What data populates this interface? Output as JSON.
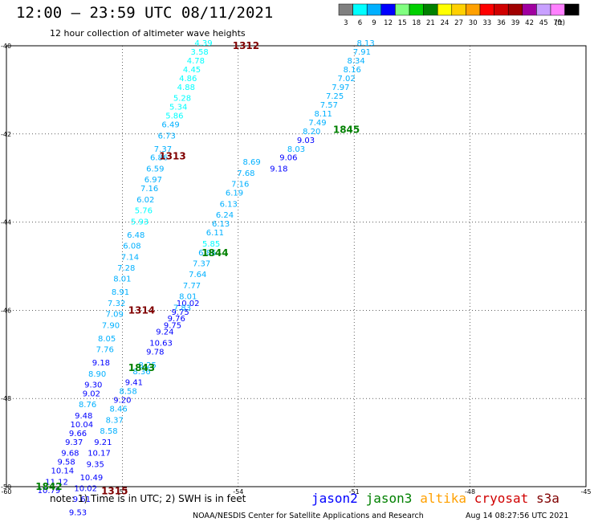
{
  "header": {
    "title": "12:00 – 23:59 UTC 08/11/2021",
    "subtitle": "12 hour collection of altimeter wave heights"
  },
  "legend": {
    "unit": "(ft)",
    "bins": [
      {
        "label": "3",
        "color": "#808080"
      },
      {
        "label": "6",
        "color": "#00ffff"
      },
      {
        "label": "9",
        "color": "#00b0ff"
      },
      {
        "label": "12",
        "color": "#0000ff"
      },
      {
        "label": "15",
        "color": "#80ff80"
      },
      {
        "label": "18",
        "color": "#00d000"
      },
      {
        "label": "21",
        "color": "#008000"
      },
      {
        "label": "24",
        "color": "#ffff00"
      },
      {
        "label": "27",
        "color": "#ffd000"
      },
      {
        "label": "30",
        "color": "#ffa000"
      },
      {
        "label": "33",
        "color": "#ff0000"
      },
      {
        "label": "36",
        "color": "#d00000"
      },
      {
        "label": "39",
        "color": "#a00000"
      },
      {
        "label": "42",
        "color": "#a000a0"
      },
      {
        "label": "45",
        "color": "#c8a0ff"
      },
      {
        "label": "70",
        "color": "#ff80ff"
      },
      {
        "label": "",
        "color": "#000000"
      }
    ]
  },
  "map": {
    "lon_range": [
      -60,
      -45
    ],
    "lat_range": [
      -50,
      -40
    ],
    "lon_ticks": [
      "-60",
      "-57",
      "-54",
      "-51",
      "-48",
      "-45"
    ],
    "lat_ticks": [
      "-40",
      "-42",
      "-44",
      "-46",
      "-48",
      "-50"
    ],
    "grid": true
  },
  "chart_data": {
    "type": "scatter",
    "x_unit": "degrees longitude",
    "y_unit": "degrees latitude",
    "value_unit": "ft",
    "passes": [
      {
        "label": "1312",
        "label_color": "#800000",
        "label_pos": [
          -53.8,
          -40.0
        ],
        "points": [
          [
            -54.9,
            -40.0,
            4.39
          ],
          [
            -55.0,
            -40.2,
            3.58
          ],
          [
            -55.1,
            -40.4,
            4.78
          ],
          [
            -55.2,
            -40.6,
            4.45
          ],
          [
            -55.3,
            -40.8,
            4.86
          ],
          [
            -55.35,
            -41.0,
            4.88
          ],
          [
            -55.45,
            -41.25,
            5.28
          ],
          [
            -55.55,
            -41.45,
            5.34
          ],
          [
            -55.65,
            -41.65,
            5.86
          ],
          [
            -55.75,
            -41.85,
            6.49
          ],
          [
            -55.85,
            -42.1,
            6.73
          ],
          [
            -55.95,
            -42.4,
            7.37
          ],
          [
            -56.05,
            -42.6,
            6.86
          ],
          [
            -56.15,
            -42.85,
            6.59
          ],
          [
            -56.2,
            -43.1,
            6.97
          ],
          [
            -56.3,
            -43.3,
            7.16
          ],
          [
            -56.4,
            -43.55,
            6.02
          ],
          [
            -56.45,
            -43.8,
            5.76
          ],
          [
            -56.55,
            -44.05,
            5.93
          ],
          [
            -56.65,
            -44.35,
            6.48
          ],
          [
            -56.75,
            -44.6,
            6.08
          ],
          [
            -56.8,
            -44.85,
            7.14
          ],
          [
            -56.9,
            -45.1,
            7.28
          ],
          [
            -57.0,
            -45.35,
            8.01
          ],
          [
            -57.05,
            -45.65,
            8.91
          ],
          [
            -57.15,
            -45.9,
            7.32
          ],
          [
            -57.2,
            -46.15,
            7.09
          ],
          [
            -57.3,
            -46.4,
            7.9
          ],
          [
            -57.4,
            -46.7,
            8.05
          ],
          [
            -57.45,
            -46.95,
            7.76
          ],
          [
            -57.55,
            -47.25,
            9.18
          ],
          [
            -57.65,
            -47.5,
            8.9
          ],
          [
            -57.75,
            -47.75,
            9.3
          ],
          [
            -57.8,
            -47.95,
            9.02
          ],
          [
            -57.9,
            -48.2,
            8.76
          ],
          [
            -58.0,
            -48.45,
            9.48
          ],
          [
            -58.05,
            -48.65,
            10.04
          ],
          [
            -58.15,
            -48.85,
            9.66
          ],
          [
            -58.25,
            -49.05,
            9.37
          ],
          [
            -58.35,
            -49.3,
            9.68
          ],
          [
            -58.45,
            -49.5,
            9.58
          ],
          [
            -58.55,
            -49.7,
            10.14
          ],
          [
            -58.7,
            -49.95,
            11.12
          ],
          [
            -58.9,
            -50.15,
            10.79
          ]
        ]
      },
      {
        "label": "1313",
        "label_color": "#800000",
        "label_pos": [
          -55.7,
          -42.5
        ],
        "points": []
      },
      {
        "label": "1314",
        "label_color": "#800000",
        "label_pos": [
          -56.5,
          -46.0
        ],
        "points": [
          [
            -55.3,
            -45.9,
            10.02
          ],
          [
            -55.5,
            -46.1,
            9.75
          ],
          [
            -55.7,
            -46.4,
            9.75
          ],
          [
            -55.9,
            -46.55,
            9.24
          ],
          [
            -56.0,
            -46.8,
            10.63
          ],
          [
            -56.15,
            -47.0,
            9.78
          ],
          [
            -56.35,
            -47.3,
            8.25
          ],
          [
            -56.5,
            -47.45,
            8.36
          ],
          [
            -56.7,
            -47.7,
            9.41
          ],
          [
            -56.85,
            -47.9,
            8.58
          ],
          [
            -57.0,
            -48.1,
            9.2
          ],
          [
            -57.1,
            -48.3,
            8.46
          ],
          [
            -57.2,
            -48.55,
            8.37
          ],
          [
            -57.35,
            -48.8,
            8.58
          ],
          [
            -57.5,
            -49.05,
            9.21
          ],
          [
            -57.6,
            -49.3,
            10.17
          ],
          [
            -57.7,
            -49.55,
            9.35
          ],
          [
            -57.8,
            -49.85,
            10.49
          ],
          [
            -57.95,
            -50.1,
            10.02
          ],
          [
            -58.05,
            -50.35,
            9.61
          ],
          [
            -58.15,
            -50.65,
            9.53
          ]
        ]
      },
      {
        "label": "1315",
        "label_color": "#800000",
        "label_pos": [
          -57.2,
          -50.1
        ],
        "points": []
      },
      {
        "label": "1842",
        "label_color": "#008000",
        "label_pos": [
          -58.9,
          -50.0
        ],
        "points": []
      },
      {
        "label": "1843",
        "label_color": "#008000",
        "label_pos": [
          -56.5,
          -47.3
        ],
        "points": []
      },
      {
        "label": "1844",
        "label_color": "#008000",
        "label_pos": [
          -54.6,
          -44.7
        ],
        "points": [
          [
            -53.65,
            -42.7,
            8.69
          ],
          [
            -53.8,
            -42.95,
            7.68
          ],
          [
            -53.95,
            -43.2,
            7.16
          ],
          [
            -54.1,
            -43.4,
            6.19
          ],
          [
            -54.25,
            -43.65,
            6.13
          ],
          [
            -54.35,
            -43.9,
            6.24
          ],
          [
            -54.45,
            -44.1,
            6.13
          ],
          [
            -54.6,
            -44.3,
            6.11
          ],
          [
            -54.7,
            -44.55,
            5.85
          ],
          [
            -54.8,
            -44.75,
            6.86
          ],
          [
            -54.95,
            -45.0,
            7.37
          ],
          [
            -55.05,
            -45.25,
            7.64
          ],
          [
            -55.2,
            -45.5,
            7.77
          ],
          [
            -55.3,
            -45.75,
            8.01
          ],
          [
            -55.45,
            -46.0,
            7.83
          ],
          [
            -55.6,
            -46.25,
            9.76
          ]
        ]
      },
      {
        "label": "1845",
        "label_color": "#008000",
        "label_pos": [
          -51.2,
          -41.9
        ],
        "points": [
          [
            -50.7,
            -40.0,
            8.13
          ],
          [
            -50.8,
            -40.2,
            7.91
          ],
          [
            -50.95,
            -40.4,
            8.34
          ],
          [
            -51.05,
            -40.6,
            8.16
          ],
          [
            -51.2,
            -40.8,
            7.02
          ],
          [
            -51.35,
            -41.0,
            7.97
          ],
          [
            -51.5,
            -41.2,
            7.25
          ],
          [
            -51.65,
            -41.4,
            7.57
          ],
          [
            -51.8,
            -41.6,
            8.11
          ],
          [
            -51.95,
            -41.8,
            7.49
          ],
          [
            -52.1,
            -42.0,
            8.2
          ],
          [
            -52.25,
            -42.2,
            9.03
          ],
          [
            -52.5,
            -42.4,
            8.03
          ],
          [
            -52.7,
            -42.6,
            9.06
          ],
          [
            -52.95,
            -42.85,
            9.18
          ]
        ]
      }
    ]
  },
  "footer": {
    "note": "note:  1) Time is in UTC;  2) SWH is in feet",
    "missions": [
      {
        "label": "jason2",
        "color": "#0000ff"
      },
      {
        "label": "jason3",
        "color": "#008000"
      },
      {
        "label": "altika",
        "color": "#ffa000"
      },
      {
        "label": "cryosat",
        "color": "#d00000"
      },
      {
        "label": "s3a",
        "color": "#800000"
      }
    ],
    "credit": "NOAA/NESDIS Center for Satellite Applications and Research",
    "timestamp": "Aug 14 08:27:56 UTC 2021"
  }
}
